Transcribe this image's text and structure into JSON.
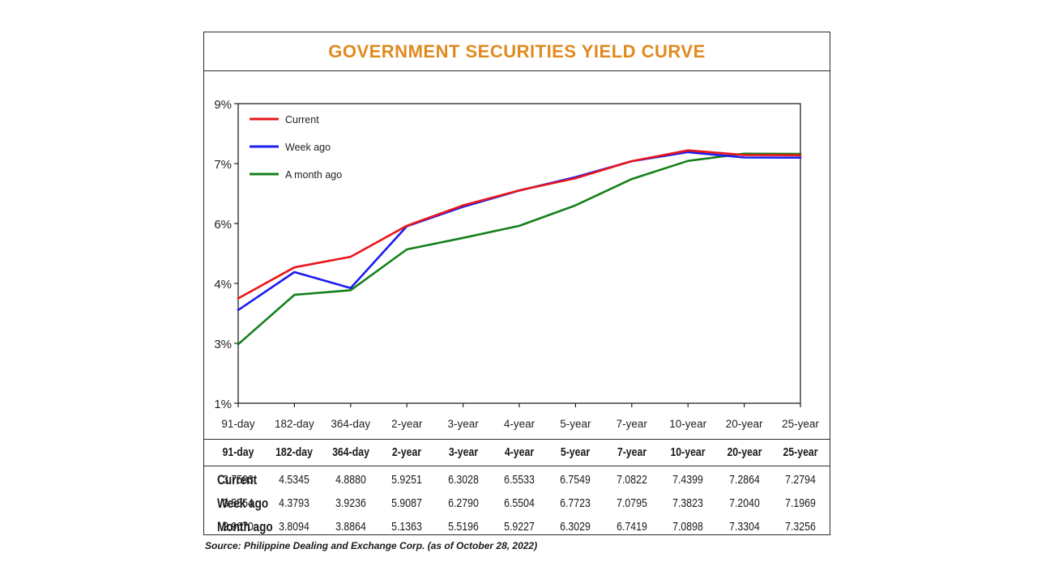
{
  "chart_data": {
    "type": "line",
    "title": "GOVERNMENT SECURITIES YIELD CURVE",
    "categories": [
      "91-day",
      "182-day",
      "364-day",
      "2-year",
      "3-year",
      "4-year",
      "5-year",
      "7-year",
      "10-year",
      "20-year",
      "25-year"
    ],
    "y_ticks": [
      "1%",
      "3%",
      "4%",
      "6%",
      "7%",
      "9%"
    ],
    "ylim": [
      1,
      9
    ],
    "grid": false,
    "legend_position": "top-left",
    "series": [
      {
        "name": "Current",
        "color": "#e8161b",
        "values": [
          3.7503,
          4.5345,
          4.888,
          5.9251,
          6.3028,
          6.5533,
          6.7549,
          7.0822,
          7.4399,
          7.2864,
          7.2794
        ]
      },
      {
        "name": "Week ago",
        "color": "#1c1cf0",
        "values": [
          3.5554,
          4.3793,
          3.9236,
          5.9087,
          6.279,
          6.5504,
          6.7723,
          7.0795,
          7.3823,
          7.204,
          7.1969
        ]
      },
      {
        "name": "A month ago",
        "color": "#14801a",
        "values": [
          2.967,
          3.8094,
          3.8864,
          5.1363,
          5.5196,
          5.9227,
          6.3029,
          6.7419,
          7.0898,
          7.3304,
          7.3256
        ]
      }
    ]
  },
  "table": {
    "headers": [
      "91-day",
      "182-day",
      "364-day",
      "2-year",
      "3-year",
      "4-year",
      "5-year",
      "7-year",
      "10-year",
      "20-year",
      "25-year"
    ],
    "rows": [
      {
        "label": "Current",
        "values": [
          "3.7503",
          "4.5345",
          "4.8880",
          "5.9251",
          "6.3028",
          "6.5533",
          "6.7549",
          "7.0822",
          "7.4399",
          "7.2864",
          "7.2794"
        ]
      },
      {
        "label": "Week ago",
        "values": [
          "3.5554",
          "4.3793",
          "3.9236",
          "5.9087",
          "6.2790",
          "6.5504",
          "6.7723",
          "7.0795",
          "7.3823",
          "7.2040",
          "7.1969"
        ]
      },
      {
        "label": "Month ago",
        "values": [
          "2.9670",
          "3.8094",
          "3.8864",
          "5.1363",
          "5.5196",
          "5.9227",
          "6.3029",
          "6.7419",
          "7.0898",
          "7.3304",
          "7.3256"
        ]
      }
    ]
  },
  "source": "Source: Philippine Dealing and Exchange Corp. (as of October 28, 2022)"
}
